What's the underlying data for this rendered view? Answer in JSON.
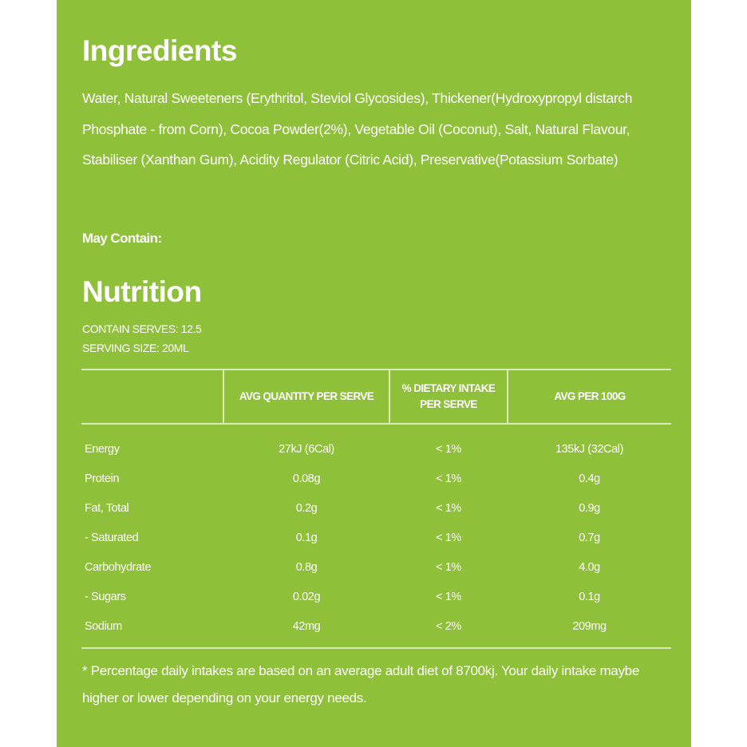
{
  "ingredients": {
    "heading": "Ingredients",
    "text": "Water, Natural Sweeteners (Erythritol, Steviol Glycosides), Thickener(Hydroxypropyl distarch Phosphate - from Corn), Cocoa Powder(2%), Vegetable Oil (Coconut), Salt, Natural Flavour, Stabiliser (Xanthan Gum), Acidity Regulator (Citric Acid), Preservative(Potassium Sorbate)",
    "may_contain_label": "May Contain:"
  },
  "nutrition": {
    "heading": "Nutrition",
    "serves": "CONTAIN SERVES: 12.5",
    "serving_size": "SERVING SIZE: 20ML",
    "table": {
      "headers": [
        "",
        "AVG QUANTITY PER SERVE",
        "% DIETARY INTAKE PER SERVE",
        "AVG PER 100G"
      ],
      "rows": [
        [
          "Energy",
          "27kJ (6Cal)",
          "< 1%",
          "135kJ (32Cal)"
        ],
        [
          "Protein",
          "0.08g",
          "< 1%",
          "0.4g"
        ],
        [
          "Fat, Total",
          "0.2g",
          "< 1%",
          "0.9g"
        ],
        [
          "- Saturated",
          "0.1g",
          "< 1%",
          "0.7g"
        ],
        [
          "Carbohydrate",
          "0.8g",
          "< 1%",
          "4.0g"
        ],
        [
          "- Sugars",
          "0.02g",
          "< 1%",
          "0.1g"
        ],
        [
          "Sodium",
          "42mg",
          "< 2%",
          "209mg"
        ]
      ]
    },
    "footnote": "* Percentage daily intakes are based on an average adult diet of 8700kj. Your daily intake maybe higher or lower depending on your energy needs."
  },
  "colors": {
    "panel_background": "#8fc03a",
    "text": "#ffffff",
    "table_lines": "#d9ecb9"
  }
}
